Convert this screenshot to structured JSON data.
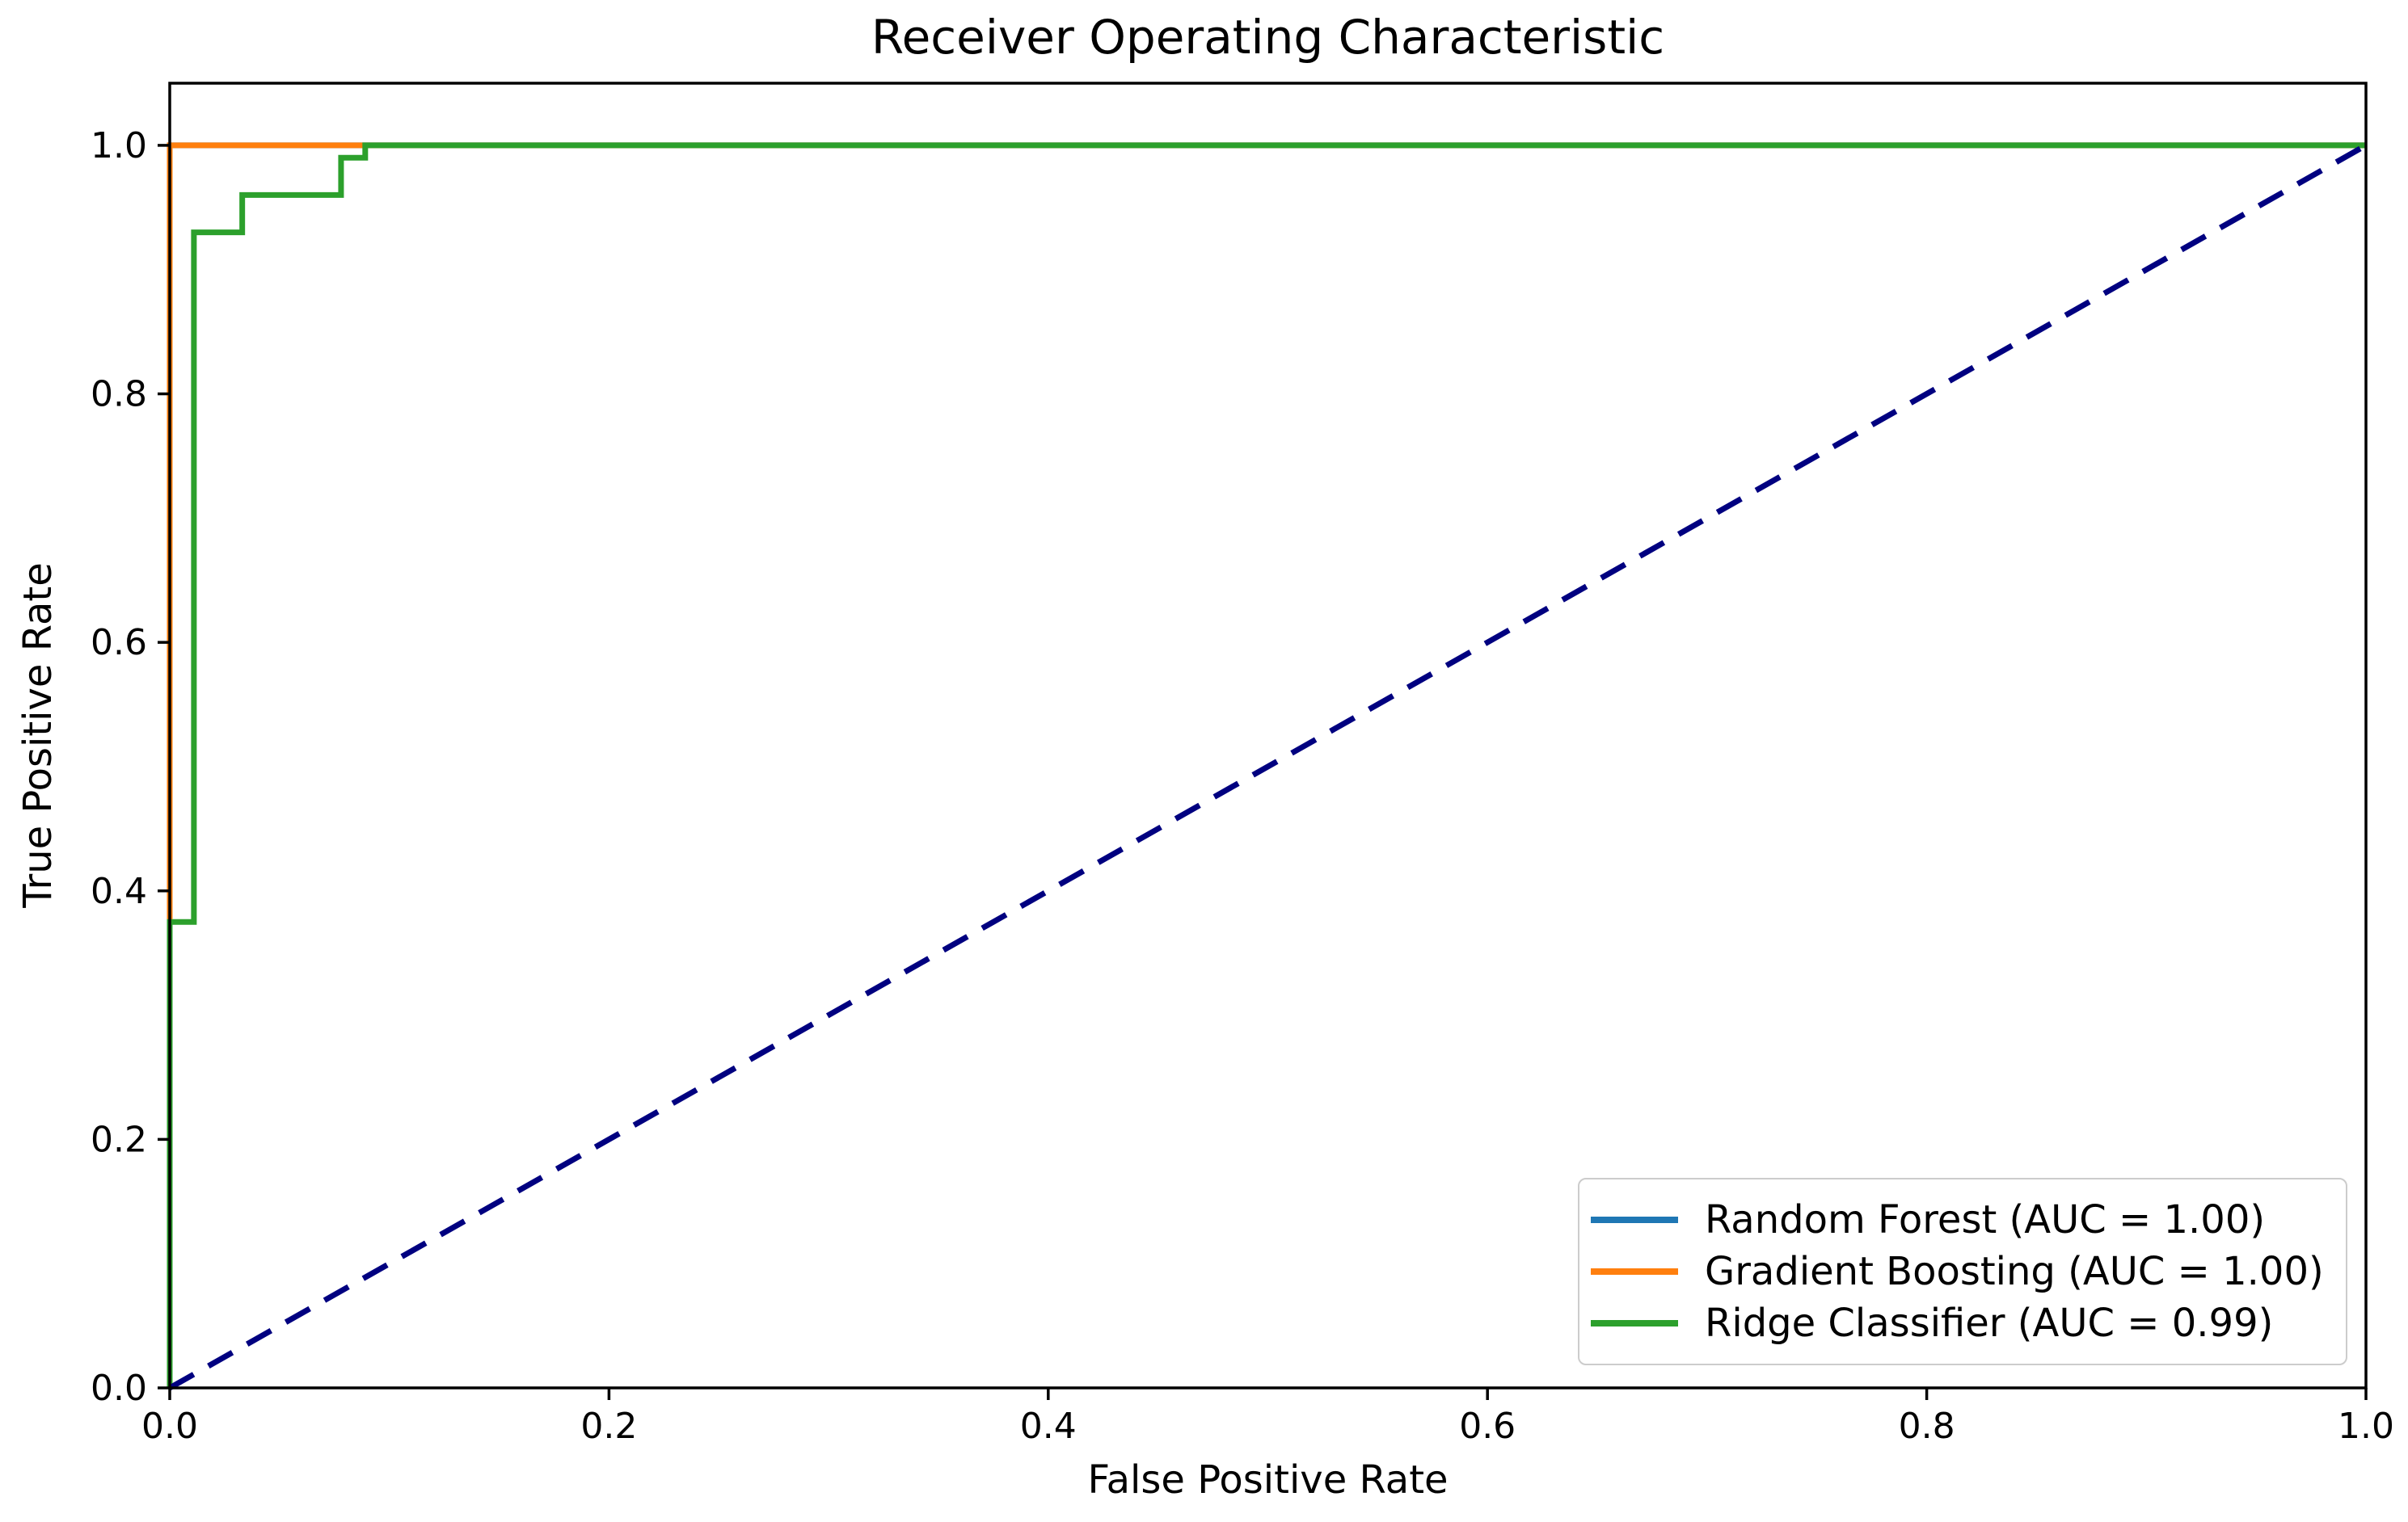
{
  "chart_data": {
    "type": "line",
    "title": "Receiver Operating Characteristic",
    "xlabel": "False Positive Rate",
    "ylabel": "True Positive Rate",
    "xlim": [
      0.0,
      1.0
    ],
    "ylim": [
      0.0,
      1.05
    ],
    "grid": false,
    "background_color": "#ffffff",
    "axis_color": "#000000",
    "legend_position": "lower right",
    "x_ticks": [
      0.0,
      0.2,
      0.4,
      0.6,
      0.8,
      1.0
    ],
    "y_ticks": [
      0.0,
      0.2,
      0.4,
      0.6,
      0.8,
      1.0
    ],
    "x_tick_labels": [
      "0.0",
      "0.2",
      "0.4",
      "0.6",
      "0.8",
      "1.0"
    ],
    "y_tick_labels": [
      "0.0",
      "0.2",
      "0.4",
      "0.6",
      "0.8",
      "1.0"
    ],
    "series": [
      {
        "name": "Random Forest",
        "legend_label": "Random Forest (AUC = 1.00)",
        "auc": "1.00",
        "color": "#1f77b4",
        "line_style": "solid",
        "points": [
          [
            0.0,
            0.0
          ],
          [
            0.0,
            1.0
          ],
          [
            1.0,
            1.0
          ]
        ]
      },
      {
        "name": "Gradient Boosting",
        "legend_label": "Gradient Boosting (AUC = 1.00)",
        "auc": "1.00",
        "color": "#ff7f0e",
        "line_style": "solid",
        "points": [
          [
            0.0,
            0.0
          ],
          [
            0.0,
            1.0
          ],
          [
            1.0,
            1.0
          ]
        ]
      },
      {
        "name": "Ridge Classifier",
        "legend_label": "Ridge Classifier (AUC = 0.99)",
        "auc": "0.99",
        "color": "#2ca02c",
        "line_style": "solid",
        "points": [
          [
            0.0,
            0.0
          ],
          [
            0.0,
            0.375
          ],
          [
            0.011,
            0.375
          ],
          [
            0.011,
            0.93
          ],
          [
            0.033,
            0.93
          ],
          [
            0.033,
            0.96
          ],
          [
            0.078,
            0.96
          ],
          [
            0.078,
            0.99
          ],
          [
            0.089,
            0.99
          ],
          [
            0.089,
            1.0
          ],
          [
            1.0,
            1.0
          ]
        ]
      }
    ],
    "reference_line": {
      "name": "Chance diagonal",
      "color": "#000080",
      "line_style": "dashed",
      "points": [
        [
          0.0,
          0.0
        ],
        [
          1.0,
          1.0
        ]
      ]
    }
  }
}
